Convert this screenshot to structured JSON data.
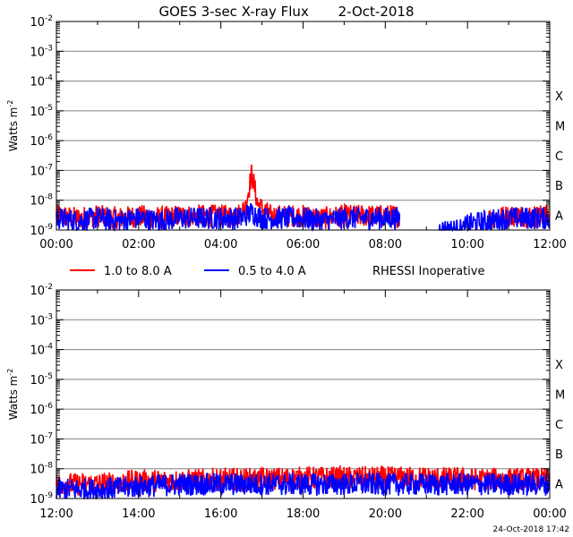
{
  "title": "GOES 3-sec X-ray Flux",
  "date": "2-Oct-2018",
  "footer_timestamp": "24-Oct-2018 17:42",
  "legend": {
    "series_long": "1.0 to 8.0 A",
    "series_short": "0.5 to 4.0 A",
    "note": "RHESSI Inoperative"
  },
  "colors": {
    "long": "#ff0000",
    "short": "#0000ff",
    "grid": "#808080",
    "axis": "#000000"
  },
  "chart_data": [
    {
      "type": "line",
      "yscale": "log",
      "ylabel": "Watts m",
      "ylabel_exponent": "-2",
      "ylim": [
        1e-09,
        0.01
      ],
      "xlim_hours": [
        0,
        12
      ],
      "yticks": [
        {
          "mantissa": "10",
          "exponent": "-2"
        },
        {
          "mantissa": "10",
          "exponent": "-3"
        },
        {
          "mantissa": "10",
          "exponent": "-4"
        },
        {
          "mantissa": "10",
          "exponent": "-5"
        },
        {
          "mantissa": "10",
          "exponent": "-6"
        },
        {
          "mantissa": "10",
          "exponent": "-7"
        },
        {
          "mantissa": "10",
          "exponent": "-8"
        },
        {
          "mantissa": "10",
          "exponent": "-9"
        }
      ],
      "xticks": [
        "00:00",
        "02:00",
        "04:00",
        "06:00",
        "08:00",
        "10:00",
        "12:00"
      ],
      "flare_classes": [
        "X",
        "M",
        "C",
        "B",
        "A"
      ],
      "series": [
        {
          "name": "1.0 to 8.0 A",
          "x_hours": [
            0.0,
            0.5,
            1.0,
            1.5,
            2.0,
            2.5,
            3.0,
            3.5,
            4.0,
            4.4,
            4.6,
            4.75,
            4.9,
            5.2,
            5.5,
            6.0,
            6.5,
            7.0,
            7.5,
            8.0,
            8.35,
            8.4,
            9.4,
            10.0,
            10.5,
            11.0,
            11.5,
            12.0
          ],
          "values": [
            3e-09,
            2.5e-09,
            3e-09,
            2.5e-09,
            3e-09,
            2.5e-09,
            3e-09,
            3e-09,
            3e-09,
            3e-09,
            6e-09,
            8e-08,
            7e-09,
            3e-09,
            3e-09,
            3e-09,
            2.5e-09,
            3e-09,
            3e-09,
            3e-09,
            3e-09,
            null,
            null,
            null,
            2.5e-09,
            3e-09,
            3e-09,
            3e-09
          ]
        },
        {
          "name": "0.5 to 4.0 A",
          "x_hours": [
            0.0,
            0.5,
            1.0,
            1.5,
            2.0,
            2.5,
            3.0,
            3.5,
            4.0,
            4.5,
            4.75,
            5.0,
            5.5,
            6.0,
            6.5,
            7.0,
            7.5,
            8.0,
            8.35,
            8.4,
            9.3,
            9.9,
            10.0,
            10.5,
            11.0,
            11.5,
            12.0
          ],
          "values": [
            2.5e-09,
            2e-09,
            2.5e-09,
            2e-09,
            2.5e-09,
            2e-09,
            2.5e-09,
            2.5e-09,
            2.5e-09,
            2.5e-09,
            4e-09,
            2.5e-09,
            2.5e-09,
            2.5e-09,
            2e-09,
            2.5e-09,
            2.5e-09,
            2.5e-09,
            2.5e-09,
            null,
            1e-09,
            1e-09,
            1.5e-09,
            2e-09,
            2.5e-09,
            2.5e-09,
            2.5e-09
          ]
        }
      ]
    },
    {
      "type": "line",
      "yscale": "log",
      "ylabel": "Watts m",
      "ylabel_exponent": "-2",
      "ylim": [
        1e-09,
        0.01
      ],
      "xlim_hours": [
        12,
        24
      ],
      "yticks": [
        {
          "mantissa": "10",
          "exponent": "-2"
        },
        {
          "mantissa": "10",
          "exponent": "-3"
        },
        {
          "mantissa": "10",
          "exponent": "-4"
        },
        {
          "mantissa": "10",
          "exponent": "-5"
        },
        {
          "mantissa": "10",
          "exponent": "-6"
        },
        {
          "mantissa": "10",
          "exponent": "-7"
        },
        {
          "mantissa": "10",
          "exponent": "-8"
        },
        {
          "mantissa": "10",
          "exponent": "-9"
        }
      ],
      "xticks": [
        "12:00",
        "14:00",
        "16:00",
        "18:00",
        "20:00",
        "22:00",
        "00:00"
      ],
      "flare_classes": [
        "X",
        "M",
        "C",
        "B",
        "A"
      ],
      "series": [
        {
          "name": "1.0 to 8.0 A",
          "x_hours": [
            12.0,
            13.0,
            14.0,
            15.0,
            16.0,
            17.0,
            18.0,
            19.0,
            20.0,
            21.0,
            22.0,
            23.0,
            24.0
          ],
          "values": [
            3e-09,
            3e-09,
            4e-09,
            4e-09,
            4.5e-09,
            4.5e-09,
            5e-09,
            5e-09,
            5e-09,
            5e-09,
            4.5e-09,
            4.5e-09,
            4.5e-09
          ]
        },
        {
          "name": "0.5 to 4.0 A",
          "x_hours": [
            12.0,
            13.0,
            14.0,
            15.0,
            16.0,
            17.0,
            18.0,
            19.0,
            20.0,
            21.0,
            22.0,
            23.0,
            24.0
          ],
          "values": [
            2e-09,
            2e-09,
            2.5e-09,
            3e-09,
            3e-09,
            3e-09,
            3e-09,
            3e-09,
            3e-09,
            3e-09,
            3e-09,
            3e-09,
            3e-09
          ]
        }
      ]
    }
  ]
}
